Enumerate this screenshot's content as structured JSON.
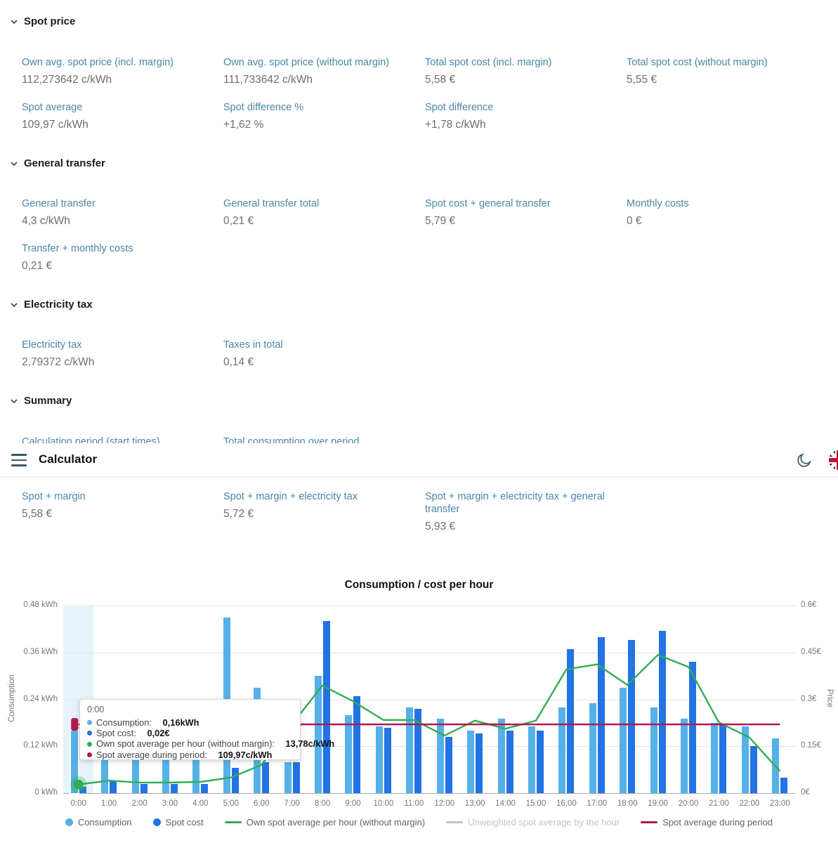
{
  "header": {
    "title": "Calculator"
  },
  "colors": {
    "consumption": "#55b1e8",
    "spot_cost": "#2273e3",
    "own_avg": "#2fae54",
    "unweighted": "#c4c4c4",
    "period_avg": "#b01950",
    "highlight_band": "#d9edf9"
  },
  "sections": {
    "spot_price": {
      "title": "Spot price",
      "stats": [
        {
          "label": "Own avg. spot price (incl. margin)",
          "value": "112,273642 c/kWh"
        },
        {
          "label": "Own avg. spot price (without margin)",
          "value": "111,733642 c/kWh"
        },
        {
          "label": "Total spot cost (incl. margin)",
          "value": "5,58 €"
        },
        {
          "label": "Total spot cost (without margin)",
          "value": "5,55 €"
        },
        {
          "label": "Spot average",
          "value": "109,97 c/kWh"
        },
        {
          "label": "Spot difference %",
          "value": "+1,62 %"
        },
        {
          "label": "Spot difference",
          "value": "+1,78 c/kWh"
        }
      ]
    },
    "general_transfer": {
      "title": "General transfer",
      "stats": [
        {
          "label": "General transfer",
          "value": "4,3 c/kWh"
        },
        {
          "label": "General transfer total",
          "value": "0,21 €"
        },
        {
          "label": "Spot cost + general transfer",
          "value": "5,79 €"
        },
        {
          "label": "Monthly costs",
          "value": "0 €"
        },
        {
          "label": "Transfer + monthly costs",
          "value": "0,21 €"
        }
      ]
    },
    "electricity_tax": {
      "title": "Electricity tax",
      "stats": [
        {
          "label": "Electricity tax",
          "value": "2,79372 c/kWh"
        },
        {
          "label": "Taxes in total",
          "value": "0,14 €"
        }
      ]
    },
    "summary": {
      "title": "Summary",
      "stats": [
        {
          "label": "Calculation period (start times)"
        },
        {
          "label": "Total consumption over period"
        }
      ]
    },
    "margins_row": {
      "stats": [
        {
          "label": "Spot + margin",
          "value": "5,58 €"
        },
        {
          "label": "Spot + margin + electricity tax",
          "value": "5,72 €"
        },
        {
          "label": "Spot + margin + electricity tax + general transfer",
          "value": "5,93 €"
        }
      ]
    }
  },
  "chart_data": {
    "type": "bar",
    "title": "Consumption / cost per hour",
    "x": [
      "0:00",
      "1:00",
      "2:00",
      "3:00",
      "4:00",
      "5:00",
      "6:00",
      "7:00",
      "8:00",
      "9:00",
      "10:00",
      "11:00",
      "12:00",
      "13:00",
      "14:00",
      "15:00",
      "16:00",
      "17:00",
      "18:00",
      "19:00",
      "20:00",
      "21:00",
      "22:00",
      "23:00"
    ],
    "series": [
      {
        "name": "Consumption",
        "type": "bar",
        "axis": "kwh",
        "color": "consumption",
        "values": [
          0.16,
          0.18,
          0.15,
          0.15,
          0.16,
          0.45,
          0.27,
          0.08,
          0.3,
          0.2,
          0.17,
          0.22,
          0.19,
          0.16,
          0.19,
          0.17,
          0.22,
          0.23,
          0.27,
          0.22,
          0.19,
          0.18,
          0.17,
          0.14
        ]
      },
      {
        "name": "Spot cost",
        "type": "bar",
        "axis": "eur",
        "color": "spot_cost",
        "values": [
          0.02,
          0.04,
          0.03,
          0.03,
          0.03,
          0.08,
          0.1,
          0.1,
          0.55,
          0.31,
          0.21,
          0.27,
          0.18,
          0.19,
          0.2,
          0.2,
          0.46,
          0.5,
          0.49,
          0.52,
          0.42,
          0.22,
          0.15,
          0.05
        ]
      },
      {
        "name": "Own spot average per hour (without margin)",
        "type": "line",
        "axis": "c_per_kwh",
        "color": "own_avg",
        "values": [
          13.78,
          20,
          17,
          17,
          18,
          25,
          45,
          110,
          172,
          147,
          117,
          117,
          92,
          116,
          103,
          116,
          198,
          206,
          173,
          221,
          202,
          113,
          89,
          35
        ]
      },
      {
        "name": "Unweighted spot average by the hour",
        "type": "line",
        "axis": "c_per_kwh",
        "color": "unweighted",
        "visible": false
      },
      {
        "name": "Spot average during period",
        "type": "line",
        "axis": "c_per_kwh",
        "color": "period_avg",
        "constant": 109.97
      }
    ],
    "y_left": {
      "label": "Consumption",
      "ticks": [
        "0.48 kWh",
        "0.36 kWh",
        "0.24 kWh",
        "0.12 kWh",
        "0 kWh"
      ],
      "max": 0.48
    },
    "y_right": {
      "label": "Price",
      "ticks": [
        "0.6€",
        "0.45€",
        "0.3€",
        "0.15€",
        "0€"
      ],
      "max": 0.6
    },
    "line_scale_max": 300,
    "highlighted_hour_index": 0,
    "legend_position": "bottom",
    "grid": true
  },
  "tooltip": {
    "title": "0:00",
    "rows": [
      {
        "label": "Consumption:",
        "value": "0,16kWh",
        "color": "consumption"
      },
      {
        "label": "Spot cost:",
        "value": "0,02€",
        "color": "spot_cost"
      },
      {
        "label": "Own spot average per hour (without margin):",
        "value": "13,78c/kWh",
        "color": "own_avg"
      },
      {
        "label": "Spot average during period:",
        "value": "109,97c/kWh",
        "color": "period_avg"
      }
    ]
  },
  "legend": [
    {
      "label": "Consumption",
      "swatch": "dot",
      "color": "consumption",
      "enabled": true
    },
    {
      "label": "Spot cost",
      "swatch": "dot",
      "color": "spot_cost",
      "enabled": true
    },
    {
      "label": "Own spot average per hour (without margin)",
      "swatch": "line",
      "color": "own_avg",
      "enabled": true
    },
    {
      "label": "Unweighted spot average by the hour",
      "swatch": "line",
      "color": "unweighted",
      "enabled": false
    },
    {
      "label": "Spot average during period",
      "swatch": "line",
      "color": "period_avg",
      "enabled": true
    }
  ]
}
